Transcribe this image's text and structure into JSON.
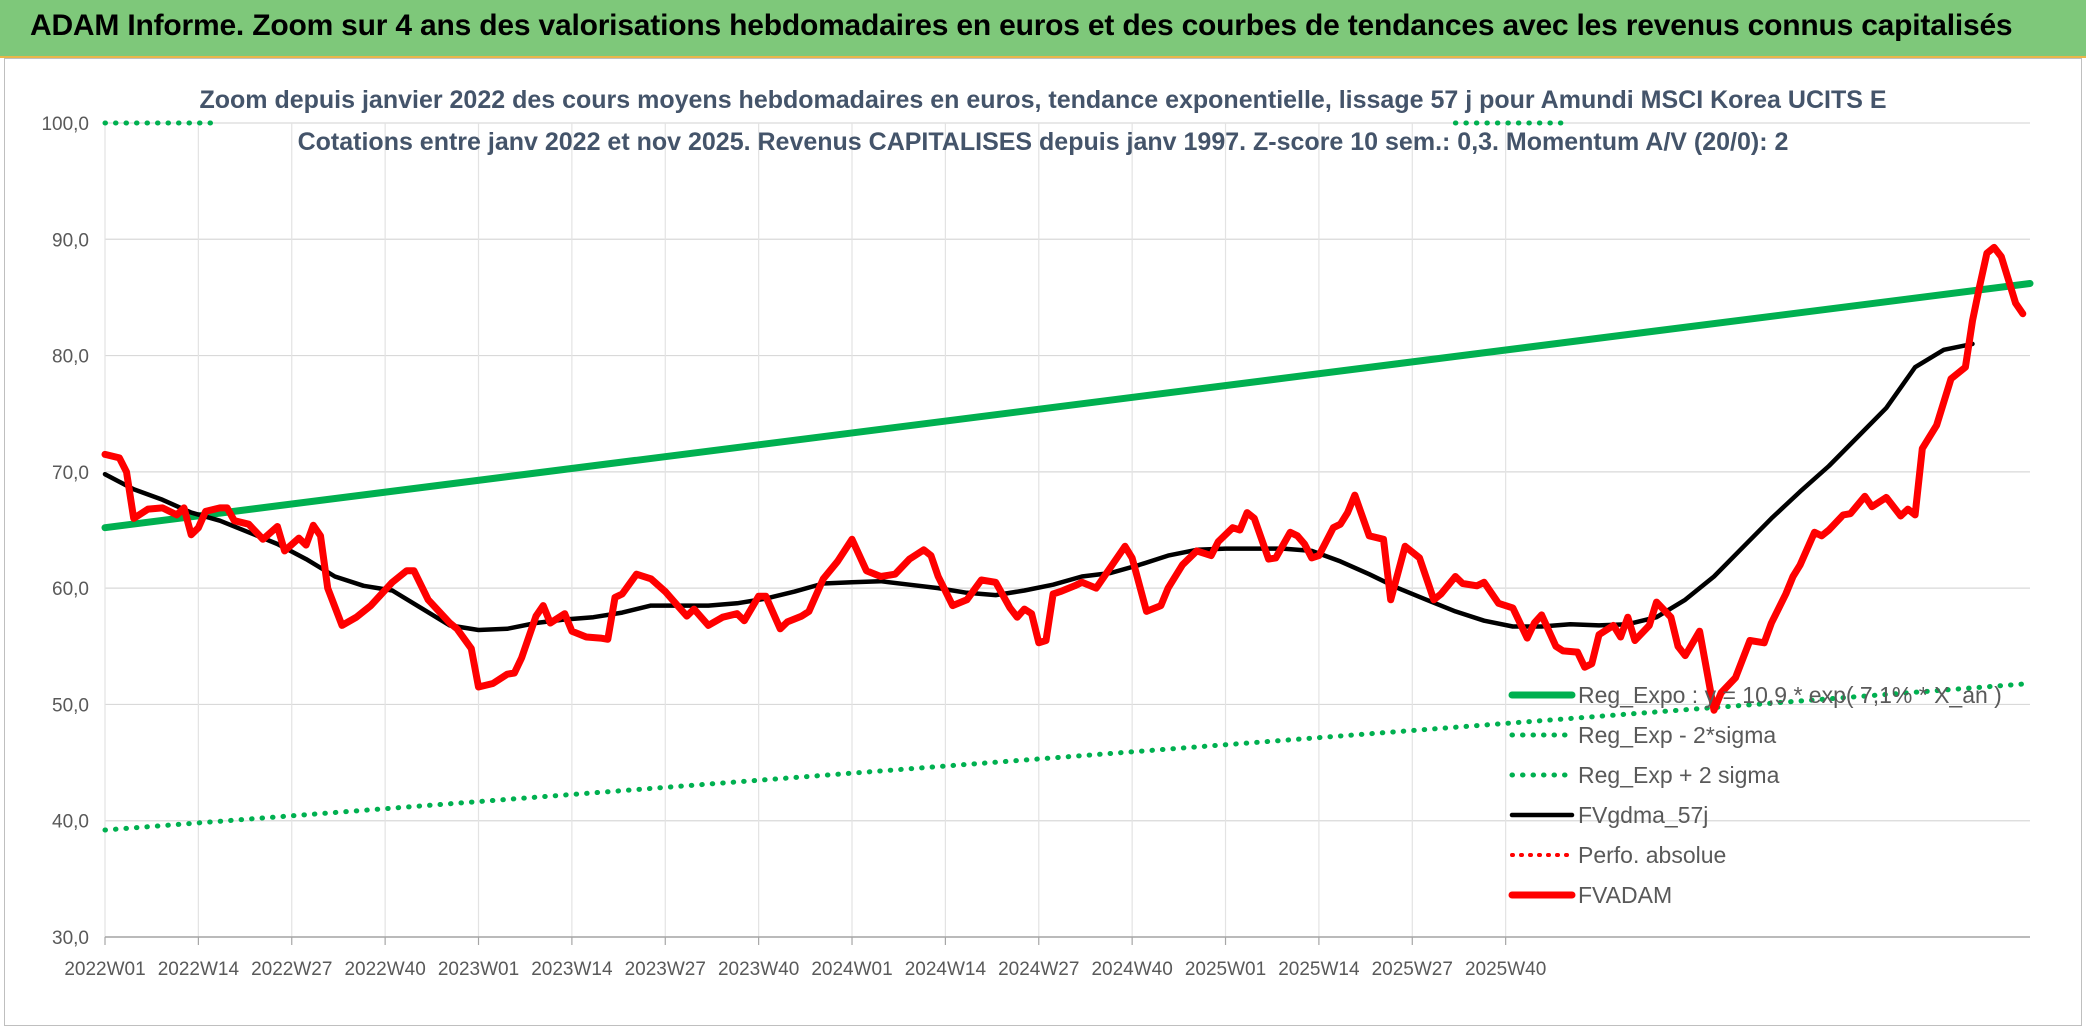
{
  "header": {
    "title": "ADAM Informe. Zoom sur 4 ans des valorisations hebdomadaires en euros et des courbes de tendances avec les revenus connus capitalisés"
  },
  "colors": {
    "banner": "#7ec87a",
    "reg_expo": "#00b050",
    "sigma": "#00b050",
    "fvgdma": "#000000",
    "perfo": "#ff0000",
    "fvadam": "#ff0000"
  },
  "chart_data": {
    "type": "line",
    "title": "Zoom depuis janvier 2022 des cours moyens hebdomadaires en euros, tendance exponentielle, lissage 57 j pour Amundi MSCI Korea UCITS E",
    "subtitle": "Cotations entre janv 2022 et nov 2025. Revenus CAPITALISES depuis janv 1997. Z-score 10 sem.: 0,3. Momentum A/V (20/0): 2",
    "xlabel": "",
    "ylabel": "",
    "ylim": [
      30,
      100
    ],
    "yticks": [
      "30,0",
      "40,0",
      "50,0",
      "60,0",
      "70,0",
      "80,0",
      "90,0",
      "100,0"
    ],
    "x_tick_labels": [
      "2022W01",
      "2022W14",
      "2022W27",
      "2022W40",
      "2023W01",
      "2023W14",
      "2023W27",
      "2023W40",
      "2024W01",
      "2024W14",
      "2024W27",
      "2024W40",
      "2025W01",
      "2025W14",
      "2025W27",
      "2025W40"
    ],
    "weeks_total": 205,
    "grid": true,
    "legend_position": "bottom-right",
    "series": [
      {
        "name": "Reg_Expo : y = 10,9 * exp( 7,1% * X_an )",
        "style": "solid-thick",
        "points": [
          [
            0,
            65.2
          ],
          [
            204,
            86.2
          ]
        ]
      },
      {
        "name": "Reg_Exp - 2*sigma",
        "style": "dotted",
        "points": [
          [
            0,
            39.2
          ],
          [
            204,
            51.8
          ]
        ]
      },
      {
        "name": "Reg_Exp + 2 sigma",
        "style": "dotted",
        "points": [
          [
            0,
            100.0
          ],
          [
            15,
            100.0
          ],
          [
            188,
            100.0
          ],
          [
            204,
            100.0
          ]
        ]
      },
      {
        "name": "FVgdma_57j",
        "style": "solid",
        "points": [
          [
            0,
            69.8
          ],
          [
            4,
            68.5
          ],
          [
            8,
            67.6
          ],
          [
            12,
            66.5
          ],
          [
            16,
            65.8
          ],
          [
            20,
            64.8
          ],
          [
            24,
            63.8
          ],
          [
            28,
            62.5
          ],
          [
            32,
            61.0
          ],
          [
            36,
            60.2
          ],
          [
            40,
            59.8
          ],
          [
            44,
            58.3
          ],
          [
            48,
            56.8
          ],
          [
            52,
            56.4
          ],
          [
            56,
            56.5
          ],
          [
            60,
            57.0
          ],
          [
            64,
            57.3
          ],
          [
            68,
            57.5
          ],
          [
            72,
            57.9
          ],
          [
            76,
            58.5
          ],
          [
            80,
            58.5
          ],
          [
            84,
            58.5
          ],
          [
            88,
            58.7
          ],
          [
            92,
            59.1
          ],
          [
            96,
            59.7
          ],
          [
            100,
            60.4
          ],
          [
            104,
            60.5
          ],
          [
            108,
            60.6
          ],
          [
            112,
            60.3
          ],
          [
            116,
            60.0
          ],
          [
            120,
            59.6
          ],
          [
            124,
            59.4
          ],
          [
            128,
            59.8
          ],
          [
            132,
            60.3
          ],
          [
            136,
            61.0
          ],
          [
            140,
            61.3
          ],
          [
            144,
            62.0
          ],
          [
            148,
            62.8
          ],
          [
            152,
            63.3
          ],
          [
            156,
            63.4
          ],
          [
            160,
            63.4
          ],
          [
            164,
            63.4
          ],
          [
            168,
            63.2
          ],
          [
            172,
            62.3
          ],
          [
            176,
            61.2
          ],
          [
            180,
            60.0
          ],
          [
            184,
            59.0
          ],
          [
            188,
            58.0
          ],
          [
            192,
            57.2
          ],
          [
            196,
            56.7
          ],
          [
            200,
            56.7
          ],
          [
            204,
            56.9
          ],
          [
            208,
            56.8
          ],
          [
            212,
            56.9
          ],
          [
            216,
            57.5
          ],
          [
            220,
            59.0
          ],
          [
            224,
            61.0
          ],
          [
            228,
            63.5
          ],
          [
            232,
            66.0
          ],
          [
            236,
            68.3
          ],
          [
            240,
            70.5
          ],
          [
            244,
            73.0
          ],
          [
            248,
            75.5
          ],
          [
            252,
            79.0
          ],
          [
            256,
            80.5
          ],
          [
            260,
            81.0
          ]
        ]
      },
      {
        "name": "Perfo. absolue",
        "style": "dotted",
        "points": []
      },
      {
        "name": "FVADAM",
        "style": "solid-thick",
        "points": [
          [
            0,
            71.5
          ],
          [
            2,
            71.2
          ],
          [
            3,
            70.0
          ],
          [
            4,
            66.0
          ],
          [
            6,
            66.8
          ],
          [
            8,
            66.9
          ],
          [
            10,
            66.3
          ],
          [
            11,
            66.9
          ],
          [
            12,
            64.6
          ],
          [
            13,
            65.2
          ],
          [
            14,
            66.6
          ],
          [
            16,
            66.9
          ],
          [
            17,
            66.9
          ],
          [
            18,
            65.8
          ],
          [
            20,
            65.5
          ],
          [
            22,
            64.2
          ],
          [
            24,
            65.3
          ],
          [
            25,
            63.2
          ],
          [
            27,
            64.3
          ],
          [
            28,
            63.7
          ],
          [
            29,
            65.4
          ],
          [
            30,
            64.5
          ],
          [
            31,
            60.0
          ],
          [
            33,
            56.8
          ],
          [
            35,
            57.5
          ],
          [
            37,
            58.5
          ],
          [
            40,
            60.5
          ],
          [
            42,
            61.5
          ],
          [
            43,
            61.5
          ],
          [
            45,
            59.0
          ],
          [
            48,
            57.0
          ],
          [
            49,
            56.5
          ],
          [
            51,
            54.8
          ],
          [
            52,
            51.5
          ],
          [
            54,
            51.8
          ],
          [
            56,
            52.6
          ],
          [
            57,
            52.7
          ],
          [
            58,
            54.0
          ],
          [
            60,
            57.6
          ],
          [
            61,
            58.5
          ],
          [
            62,
            57.0
          ],
          [
            64,
            57.8
          ],
          [
            65,
            56.3
          ],
          [
            67,
            55.8
          ],
          [
            69,
            55.7
          ],
          [
            70,
            55.6
          ],
          [
            71,
            59.2
          ],
          [
            72,
            59.5
          ],
          [
            74,
            61.2
          ],
          [
            76,
            60.8
          ],
          [
            78,
            59.7
          ],
          [
            80,
            58.3
          ],
          [
            81,
            57.6
          ],
          [
            82,
            58.2
          ],
          [
            84,
            56.8
          ],
          [
            86,
            57.5
          ],
          [
            88,
            57.8
          ],
          [
            89,
            57.2
          ],
          [
            91,
            59.3
          ],
          [
            92,
            59.3
          ],
          [
            94,
            56.5
          ],
          [
            95,
            57.1
          ],
          [
            97,
            57.6
          ],
          [
            98,
            58.0
          ],
          [
            100,
            60.8
          ],
          [
            102,
            62.3
          ],
          [
            104,
            64.2
          ],
          [
            106,
            61.5
          ],
          [
            108,
            61.0
          ],
          [
            110,
            61.2
          ],
          [
            112,
            62.5
          ],
          [
            114,
            63.3
          ],
          [
            115,
            62.8
          ],
          [
            116,
            61.0
          ],
          [
            118,
            58.5
          ],
          [
            120,
            59.0
          ],
          [
            122,
            60.7
          ],
          [
            124,
            60.5
          ],
          [
            126,
            58.3
          ],
          [
            127,
            57.5
          ],
          [
            128,
            58.2
          ],
          [
            129,
            57.8
          ],
          [
            130,
            55.3
          ],
          [
            131,
            55.5
          ],
          [
            132,
            59.5
          ],
          [
            133,
            59.7
          ],
          [
            135,
            60.2
          ],
          [
            136,
            60.5
          ],
          [
            138,
            60.0
          ],
          [
            140,
            61.8
          ],
          [
            142,
            63.6
          ],
          [
            143,
            62.6
          ],
          [
            145,
            58.0
          ],
          [
            147,
            58.5
          ],
          [
            148,
            60.0
          ],
          [
            150,
            62.0
          ],
          [
            152,
            63.2
          ],
          [
            154,
            62.8
          ],
          [
            155,
            64.0
          ],
          [
            157,
            65.2
          ],
          [
            158,
            65.0
          ],
          [
            159,
            66.5
          ],
          [
            160,
            66.0
          ],
          [
            162,
            62.5
          ],
          [
            163,
            62.6
          ],
          [
            165,
            64.8
          ],
          [
            166,
            64.5
          ],
          [
            167,
            63.8
          ],
          [
            168,
            62.6
          ],
          [
            169,
            62.8
          ],
          [
            171,
            65.2
          ],
          [
            172,
            65.5
          ],
          [
            173,
            66.5
          ],
          [
            174,
            68.0
          ],
          [
            176,
            64.5
          ],
          [
            178,
            64.2
          ],
          [
            179,
            59.0
          ],
          [
            181,
            63.6
          ],
          [
            183,
            62.6
          ],
          [
            185,
            59.0
          ],
          [
            186,
            59.5
          ],
          [
            188,
            61.0
          ],
          [
            189,
            60.4
          ],
          [
            191,
            60.2
          ],
          [
            192,
            60.5
          ],
          [
            194,
            58.7
          ],
          [
            196,
            58.3
          ],
          [
            198,
            55.7
          ],
          [
            199,
            57.0
          ],
          [
            200,
            57.7
          ],
          [
            202,
            55.0
          ],
          [
            203,
            54.6
          ],
          [
            205,
            54.5
          ],
          [
            206,
            53.2
          ],
          [
            207,
            53.5
          ],
          [
            208,
            56.0
          ],
          [
            210,
            56.8
          ],
          [
            211,
            55.8
          ],
          [
            212,
            57.5
          ],
          [
            213,
            55.5
          ],
          [
            215,
            56.8
          ],
          [
            216,
            58.8
          ],
          [
            218,
            57.5
          ],
          [
            219,
            55.0
          ],
          [
            220,
            54.2
          ],
          [
            222,
            56.3
          ],
          [
            224,
            49.5
          ],
          [
            225,
            51.0
          ],
          [
            227,
            52.3
          ],
          [
            229,
            55.5
          ],
          [
            231,
            55.3
          ],
          [
            232,
            57.0
          ],
          [
            234,
            59.5
          ],
          [
            235,
            61.0
          ],
          [
            236,
            62.0
          ],
          [
            238,
            64.8
          ],
          [
            239,
            64.5
          ],
          [
            240,
            65.0
          ],
          [
            242,
            66.3
          ],
          [
            243,
            66.4
          ],
          [
            245,
            67.9
          ],
          [
            246,
            67.0
          ],
          [
            248,
            67.8
          ],
          [
            250,
            66.2
          ],
          [
            251,
            66.8
          ],
          [
            252,
            66.3
          ],
          [
            253,
            72.0
          ],
          [
            255,
            74.0
          ],
          [
            257,
            78.0
          ],
          [
            259,
            79.0
          ],
          [
            260,
            83.0
          ],
          [
            261,
            86.0
          ],
          [
            262,
            88.8
          ],
          [
            263,
            89.3
          ],
          [
            264,
            88.5
          ],
          [
            265,
            86.5
          ],
          [
            266,
            84.5
          ],
          [
            267,
            83.6
          ]
        ]
      }
    ]
  }
}
